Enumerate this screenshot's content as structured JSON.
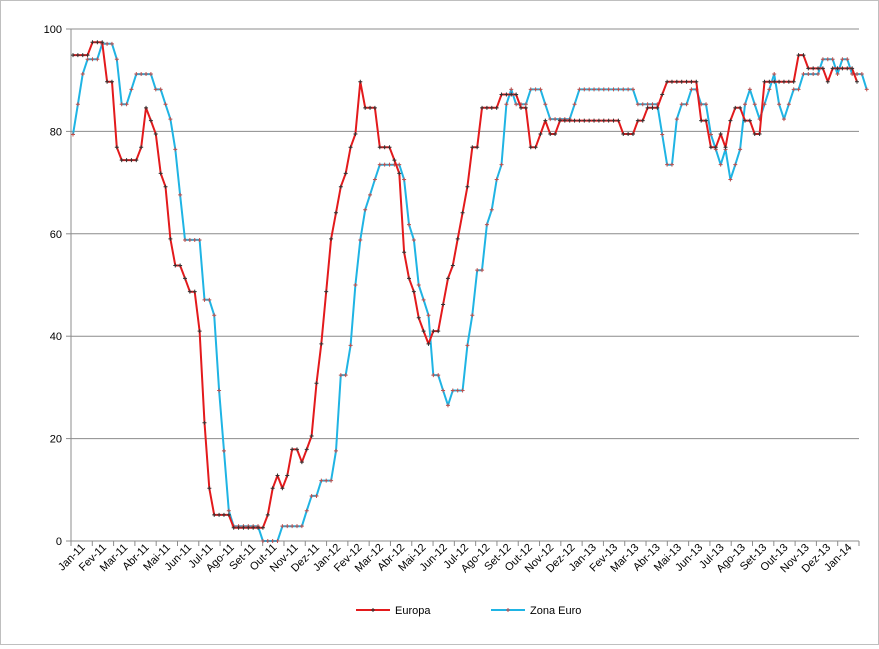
{
  "chart_data": {
    "type": "line",
    "title": "",
    "xlabel": "",
    "ylabel": "",
    "ylim": [
      0,
      100
    ],
    "y_ticks": [
      0,
      20,
      40,
      60,
      80,
      100
    ],
    "grid": "horizontal",
    "legend_position": "bottom",
    "x_tick_labels": [
      "Jan-11",
      "Fev-11",
      "Mar-11",
      "Abr-11",
      "Mai-11",
      "Jun-11",
      "Jul-11",
      "Ago-11",
      "Set-11",
      "Out-11",
      "Nov-11",
      "Dez-11",
      "Jan-12",
      "Fev-12",
      "Mar-12",
      "Abr-12",
      "Mai-12",
      "Jun-12",
      "Jul-12",
      "Ago-12",
      "Set-12",
      "Out-12",
      "Nov-12",
      "Dez-12",
      "Jan-13",
      "Fev-13",
      "Mar-13",
      "Abr-13",
      "Mai-13",
      "Jun-13",
      "Jul-13",
      "Ago-13",
      "Set-13",
      "Out-13",
      "Nov-13",
      "Dez-13",
      "Jan-14"
    ],
    "series": [
      {
        "name": "Europa",
        "color": "#e31a1c",
        "marker_color": "#333333",
        "values": [
          94.9,
          94.9,
          94.9,
          94.9,
          97.4,
          97.4,
          97.4,
          89.7,
          89.7,
          76.9,
          74.4,
          74.4,
          74.4,
          74.4,
          76.9,
          84.6,
          82.1,
          79.5,
          71.8,
          69.2,
          59.0,
          53.8,
          53.8,
          51.3,
          48.7,
          48.7,
          41.0,
          23.1,
          10.3,
          5.1,
          5.1,
          5.1,
          5.1,
          2.6,
          2.6,
          2.6,
          2.6,
          2.6,
          2.6,
          2.6,
          5.1,
          10.3,
          12.8,
          10.3,
          12.8,
          17.9,
          17.9,
          15.4,
          17.9,
          20.5,
          30.8,
          38.5,
          48.7,
          59.0,
          64.1,
          69.2,
          71.8,
          76.9,
          79.5,
          89.7,
          84.6,
          84.6,
          84.6,
          76.9,
          76.9,
          76.9,
          74.4,
          71.8,
          56.4,
          51.3,
          48.7,
          43.6,
          41.0,
          38.5,
          41.0,
          41.0,
          46.2,
          51.3,
          53.8,
          59.0,
          64.1,
          69.2,
          76.9,
          76.9,
          84.6,
          84.6,
          84.6,
          84.6,
          87.2,
          87.2,
          87.2,
          87.2,
          84.6,
          84.6,
          76.9,
          76.9,
          79.5,
          82.1,
          79.5,
          79.5,
          82.1,
          82.1,
          82.1,
          82.1,
          82.1,
          82.1,
          82.1,
          82.1,
          82.1,
          82.1,
          82.1,
          82.1,
          82.1,
          79.5,
          79.5,
          79.5,
          82.1,
          82.1,
          84.6,
          84.6,
          84.6,
          87.2,
          89.7,
          89.7,
          89.7,
          89.7,
          89.7,
          89.7,
          89.7,
          82.1,
          82.1,
          76.9,
          76.9,
          79.5,
          76.9,
          82.1,
          84.6,
          84.6,
          82.1,
          82.1,
          79.5,
          79.5,
          89.7,
          89.7,
          89.7,
          89.7,
          89.7,
          89.7,
          89.7,
          94.9,
          94.9,
          92.3,
          92.3,
          92.3,
          92.3,
          89.7,
          92.3,
          92.3,
          92.3,
          92.3,
          92.3,
          89.7
        ]
      },
      {
        "name": "Zona Euro",
        "color": "#1fb4e4",
        "marker_color": "#c0504d",
        "values": [
          79.4,
          85.3,
          91.2,
          94.1,
          94.1,
          94.1,
          97.1,
          97.1,
          97.1,
          94.1,
          85.3,
          85.3,
          88.2,
          91.2,
          91.2,
          91.2,
          91.2,
          88.2,
          88.2,
          85.3,
          82.4,
          76.5,
          67.6,
          58.8,
          58.8,
          58.8,
          58.8,
          47.1,
          47.1,
          44.1,
          29.4,
          17.6,
          5.9,
          2.9,
          2.9,
          2.9,
          2.9,
          2.9,
          2.9,
          0.0,
          0.0,
          0.0,
          0.0,
          2.9,
          2.9,
          2.9,
          2.9,
          2.9,
          5.9,
          8.8,
          8.8,
          11.8,
          11.8,
          11.8,
          17.6,
          32.4,
          32.4,
          38.2,
          50.0,
          58.8,
          64.7,
          67.6,
          70.6,
          73.5,
          73.5,
          73.5,
          73.5,
          73.5,
          70.6,
          61.8,
          58.8,
          50.0,
          47.1,
          44.1,
          32.4,
          32.4,
          29.4,
          26.5,
          29.4,
          29.4,
          29.4,
          38.2,
          44.1,
          52.9,
          52.9,
          61.8,
          64.7,
          70.6,
          73.5,
          85.3,
          88.2,
          85.3,
          85.3,
          85.3,
          88.2,
          88.2,
          88.2,
          85.3,
          82.4,
          82.4,
          82.4,
          82.4,
          82.4,
          85.3,
          88.2,
          88.2,
          88.2,
          88.2,
          88.2,
          88.2,
          88.2,
          88.2,
          88.2,
          88.2,
          88.2,
          88.2,
          85.3,
          85.3,
          85.3,
          85.3,
          85.3,
          79.4,
          73.5,
          73.5,
          82.4,
          85.3,
          85.3,
          88.2,
          88.2,
          85.3,
          85.3,
          79.4,
          76.5,
          73.5,
          76.5,
          70.6,
          73.5,
          76.5,
          85.3,
          88.2,
          85.3,
          82.4,
          85.3,
          88.2,
          91.2,
          85.3,
          82.4,
          85.3,
          88.2,
          88.2,
          91.2,
          91.2,
          91.2,
          91.2,
          94.1,
          94.1,
          94.1,
          91.2,
          94.1,
          94.1,
          91.2,
          91.2,
          91.2,
          88.2
        ]
      }
    ]
  }
}
